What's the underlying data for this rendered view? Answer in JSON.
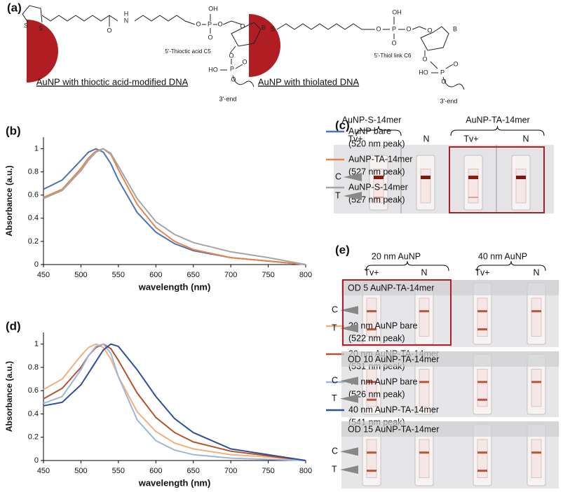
{
  "panel_labels": {
    "a": "(a)",
    "b": "(b)",
    "c": "(c)",
    "d": "(d)",
    "e": "(e)"
  },
  "panel_a": {
    "structures": [
      {
        "caption": "AuNP with thioctic acid-modified DNA",
        "linker": "5'-Thioctic acid C5",
        "end": "3'-end",
        "atoms": [
          "S",
          "S",
          "O",
          "H",
          "N",
          "O",
          "P",
          "OH",
          "O",
          "O",
          "O",
          "B",
          "O",
          "P",
          "HO",
          "O",
          "O"
        ]
      },
      {
        "caption": "AuNP with thiolated DNA",
        "linker": "5'-Thiol link C6",
        "end": "3'-end",
        "atoms": [
          "S",
          "O",
          "P",
          "OH",
          "O",
          "O",
          "O",
          "B",
          "O",
          "P",
          "HO",
          "O",
          "O"
        ]
      }
    ]
  },
  "chart_data": [
    {
      "type": "line",
      "x_label": "wavelength (nm)",
      "y_label": "Absorbance (a.u.)",
      "x": [
        450,
        475,
        500,
        510,
        520,
        530,
        540,
        550,
        575,
        600,
        625,
        650,
        700,
        750,
        800
      ],
      "xlim": [
        450,
        800
      ],
      "xticks": [
        450,
        500,
        550,
        600,
        650,
        700,
        750,
        800
      ],
      "ylim": [
        0,
        1.1
      ],
      "yticks": [
        0,
        0.2,
        0.4,
        0.6,
        0.8,
        1
      ],
      "series": [
        {
          "name": "AuNP bare",
          "legend_note": "(520 nm peak)",
          "color": "#4a72b8",
          "values": [
            0.65,
            0.73,
            0.9,
            0.97,
            1.0,
            0.97,
            0.87,
            0.73,
            0.45,
            0.28,
            0.18,
            0.12,
            0.06,
            0.03,
            0
          ]
        },
        {
          "name": "AuNP-TA-14mer",
          "legend_note": "(527 nm peak)",
          "color": "#e8834a",
          "values": [
            0.58,
            0.65,
            0.83,
            0.92,
            0.98,
            1.0,
            0.95,
            0.82,
            0.52,
            0.32,
            0.2,
            0.13,
            0.06,
            0.03,
            0
          ]
        },
        {
          "name": "AuNP-S-14mer",
          "legend_note": "(527 nm peak)",
          "color": "#a5a5a5",
          "values": [
            0.57,
            0.64,
            0.81,
            0.9,
            0.97,
            1.0,
            0.96,
            0.85,
            0.57,
            0.37,
            0.26,
            0.19,
            0.11,
            0.06,
            0
          ]
        }
      ]
    },
    {
      "type": "line",
      "x_label": "wavelength (nm)",
      "y_label": "Absorbance (a.u.)",
      "x": [
        450,
        475,
        500,
        510,
        520,
        530,
        540,
        550,
        575,
        600,
        625,
        650,
        700,
        750,
        800
      ],
      "xlim": [
        450,
        800
      ],
      "xticks": [
        450,
        500,
        550,
        600,
        650,
        700,
        750,
        800
      ],
      "ylim": [
        0,
        1.1
      ],
      "yticks": [
        0,
        0.2,
        0.4,
        0.6,
        0.8,
        1
      ],
      "series": [
        {
          "name": "20 nm AuNP bare",
          "legend_note": "(522 nm peak)",
          "color": "#f2b07c",
          "values": [
            0.61,
            0.7,
            0.9,
            0.97,
            1.0,
            0.97,
            0.87,
            0.72,
            0.42,
            0.25,
            0.15,
            0.1,
            0.05,
            0.03,
            0
          ]
        },
        {
          "name": "20 nm AuNP-TA-14mer",
          "legend_note": "(531 nm peak)",
          "color": "#b5522a",
          "values": [
            0.53,
            0.62,
            0.8,
            0.9,
            0.97,
            1.0,
            0.96,
            0.86,
            0.58,
            0.37,
            0.24,
            0.16,
            0.08,
            0.04,
            0
          ]
        },
        {
          "name": "40 nm AuNP bare",
          "legend_note": "(526 nm peak)",
          "color": "#9db7d9",
          "values": [
            0.49,
            0.55,
            0.78,
            0.9,
            0.98,
            1.0,
            0.92,
            0.72,
            0.35,
            0.17,
            0.09,
            0.05,
            0.02,
            0.01,
            0
          ]
        },
        {
          "name": "40 nm AuNP-TA-14mer",
          "legend_note": "(541 nm peak)",
          "color": "#2f4f9e",
          "values": [
            0.47,
            0.5,
            0.65,
            0.75,
            0.85,
            0.95,
            1.0,
            0.98,
            0.78,
            0.55,
            0.36,
            0.24,
            0.1,
            0.05,
            0
          ]
        }
      ]
    }
  ],
  "panel_c": {
    "groups": [
      "AuNP-S-14mer",
      "AuNP-TA-14mer"
    ],
    "columns": [
      "Tv+",
      "N",
      "Tv+",
      "N"
    ],
    "lines": [
      "C",
      "T"
    ]
  },
  "panel_e": {
    "groups": [
      "20 nm AuNP",
      "40 nm AuNP"
    ],
    "columns": [
      "Tv+",
      "N",
      "Tv+",
      "N"
    ],
    "rows": [
      "OD 5 AuNP-TA-14mer",
      "OD 10  AuNP-TA-14mer",
      "OD 15 AuNP-TA-14mer"
    ],
    "lines": [
      "C",
      "T"
    ]
  }
}
